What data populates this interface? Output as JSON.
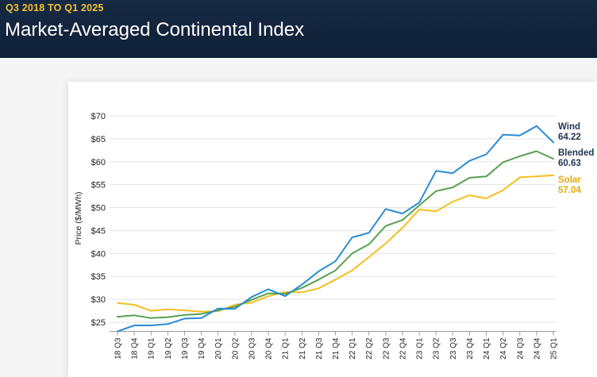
{
  "header": {
    "eyebrow": "Q3 2018 TO Q1 2025",
    "title": "Market-Averaged Continental Index"
  },
  "chart_data": {
    "type": "line",
    "title": "Market-Averaged Continental Index",
    "subtitle": "Q3 2018 TO Q1 2025",
    "xlabel": "",
    "ylabel": "Price ($/MWh)",
    "ylim": [
      23,
      70
    ],
    "yticks": [
      25,
      30,
      35,
      40,
      45,
      50,
      55,
      60,
      65,
      70
    ],
    "ytick_labels": [
      "$25",
      "$30",
      "$35",
      "$40",
      "$45",
      "$50",
      "$55",
      "$60",
      "$65",
      "$70"
    ],
    "grid": true,
    "legend": "end-labels-right",
    "categories": [
      "18 Q3",
      "18 Q4",
      "19 Q1",
      "19 Q2",
      "19 Q3",
      "19 Q4",
      "20 Q1",
      "20 Q2",
      "20 Q3",
      "20 Q4",
      "21 Q1",
      "21 Q2",
      "21 Q3",
      "21 Q4",
      "22 Q1",
      "22 Q2",
      "22 Q3",
      "22 Q4",
      "23 Q1",
      "23 Q2",
      "23 Q3",
      "23 Q4",
      "24 Q1",
      "24 Q2",
      "24 Q3",
      "24 Q4",
      "25 Q1"
    ],
    "series": [
      {
        "name": "Wind",
        "end_value": "64.22",
        "color": "#2a8bd2",
        "label_color": "#1f3550",
        "values": [
          23.0,
          24.3,
          24.3,
          24.6,
          25.8,
          25.9,
          28.0,
          27.9,
          30.5,
          32.2,
          30.7,
          33.2,
          36.1,
          38.3,
          43.5,
          44.5,
          49.7,
          48.7,
          51.1,
          58.0,
          57.5,
          60.2,
          61.6,
          65.9,
          65.7,
          67.8,
          64.22
        ]
      },
      {
        "name": "Blended",
        "end_value": "60.63",
        "color": "#56a151",
        "label_color": "#1f3550",
        "values": [
          26.2,
          26.5,
          25.9,
          26.1,
          26.6,
          26.8,
          27.6,
          28.4,
          29.9,
          31.3,
          31.2,
          32.5,
          34.3,
          36.3,
          40.0,
          42.0,
          46.0,
          47.3,
          50.5,
          53.6,
          54.4,
          56.5,
          56.8,
          59.9,
          61.2,
          62.3,
          60.63
        ]
      },
      {
        "name": "Solar",
        "end_value": "57.04",
        "color": "#f5bf1f",
        "label_color": "#e3a90c",
        "values": [
          29.2,
          28.8,
          27.5,
          27.8,
          27.6,
          27.3,
          27.4,
          28.8,
          29.3,
          30.7,
          31.6,
          31.5,
          32.4,
          34.3,
          36.3,
          39.2,
          42.2,
          45.6,
          49.6,
          49.2,
          51.3,
          52.7,
          52.0,
          53.8,
          56.6,
          56.8,
          57.04
        ]
      }
    ]
  }
}
